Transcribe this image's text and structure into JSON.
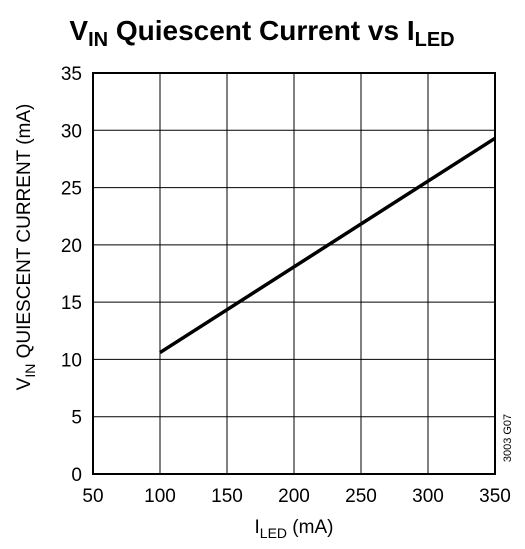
{
  "chart_data": {
    "type": "line",
    "title": {
      "main": "V",
      "main_sub": "IN",
      "rest": " Quiescent Current vs I",
      "rest_sub": "LED"
    },
    "xlabel": {
      "main": "I",
      "sub": "LED",
      "rest": " (mA)"
    },
    "ylabel": {
      "main": "V",
      "sub": "IN",
      "rest": " QUIESCENT CURRENT (mA)"
    },
    "xlim": [
      50,
      350
    ],
    "ylim": [
      0,
      35
    ],
    "xticks": [
      50,
      100,
      150,
      200,
      250,
      300,
      350
    ],
    "yticks": [
      0,
      5,
      10,
      15,
      20,
      25,
      30,
      35
    ],
    "grid": true,
    "line_color": "#000000",
    "series": [
      {
        "x": [
          100,
          350
        ],
        "y": [
          10.6,
          29.3
        ]
      }
    ],
    "figure_code": "3003 G07"
  }
}
